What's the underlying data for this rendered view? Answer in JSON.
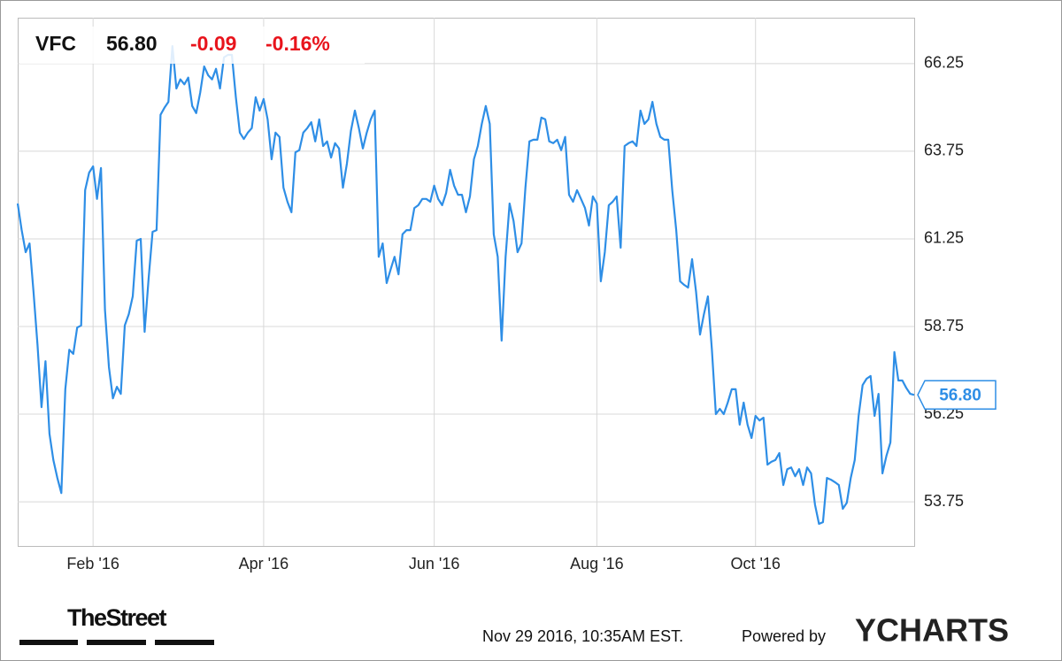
{
  "header": {
    "symbol": "VFC",
    "price": "56.80",
    "change": "-0.09",
    "change_pct": "-0.16%"
  },
  "footer": {
    "logo": "TheStreet",
    "timestamp": "Nov 29 2016, 10:35AM EST.",
    "powered_by": "Powered by",
    "brand": "YCHARTS"
  },
  "chart_data": {
    "type": "line",
    "last_label": "56.80",
    "grid": true,
    "ylim": [
      52.49,
      67.56
    ],
    "yticks": [
      53.75,
      56.25,
      58.75,
      61.25,
      63.75,
      66.25
    ],
    "xlim": [
      0,
      226
    ],
    "xticks": [
      {
        "value": 19,
        "label": "Feb '16"
      },
      {
        "value": 62,
        "label": "Apr '16"
      },
      {
        "value": 105,
        "label": "Jun '16"
      },
      {
        "value": 146,
        "label": "Aug '16"
      },
      {
        "value": 186,
        "label": "Oct '16"
      }
    ],
    "series": [
      {
        "name": "VFC",
        "color": "#2e8ee6",
        "values": [
          62.26,
          61.5,
          60.87,
          61.12,
          59.73,
          58.22,
          56.45,
          57.76,
          55.69,
          54.94,
          54.43,
          54.0,
          56.96,
          58.09,
          57.97,
          58.72,
          58.78,
          62.64,
          63.14,
          63.32,
          62.39,
          63.27,
          59.23,
          57.59,
          56.7,
          57.03,
          56.83,
          58.78,
          59.1,
          59.61,
          61.2,
          61.25,
          58.6,
          60.11,
          61.45,
          61.5,
          64.79,
          64.99,
          65.16,
          66.75,
          65.54,
          65.8,
          65.66,
          65.85,
          65.04,
          64.84,
          65.42,
          66.17,
          65.92,
          65.8,
          66.1,
          65.54,
          66.43,
          66.5,
          66.5,
          65.29,
          64.28,
          64.1,
          64.28,
          64.41,
          65.29,
          64.91,
          65.24,
          64.66,
          63.52,
          64.28,
          64.16,
          62.71,
          62.31,
          62.01,
          63.72,
          63.78,
          64.28,
          64.41,
          64.58,
          64.03,
          64.66,
          63.9,
          64.03,
          63.57,
          63.98,
          63.83,
          62.71,
          63.4,
          64.33,
          64.91,
          64.41,
          63.83,
          64.28,
          64.66,
          64.91,
          60.74,
          61.12,
          59.99,
          60.37,
          60.74,
          60.24,
          61.38,
          61.5,
          61.5,
          62.13,
          62.21,
          62.39,
          62.39,
          62.31,
          62.77,
          62.39,
          62.21,
          62.56,
          63.22,
          62.77,
          62.51,
          62.51,
          62.01,
          62.46,
          63.52,
          63.9,
          64.53,
          65.04,
          64.53,
          61.38,
          60.74,
          58.35,
          60.74,
          62.26,
          61.76,
          60.87,
          61.12,
          62.71,
          64.03,
          64.08,
          64.08,
          64.71,
          64.66,
          64.03,
          63.98,
          64.08,
          63.78,
          64.16,
          62.51,
          62.31,
          62.64,
          62.39,
          62.13,
          61.63,
          62.46,
          62.26,
          60.04,
          60.87,
          62.21,
          62.31,
          62.46,
          61.0,
          63.9,
          63.98,
          64.03,
          63.9,
          64.91,
          64.53,
          64.66,
          65.16,
          64.53,
          64.16,
          64.08,
          64.08,
          62.64,
          61.5,
          60.04,
          59.94,
          59.86,
          60.67,
          59.74,
          58.52,
          59.1,
          59.61,
          58.09,
          56.25,
          56.4,
          56.25,
          56.58,
          56.96,
          56.96,
          55.95,
          56.58,
          55.95,
          55.57,
          56.2,
          56.07,
          56.15,
          54.81,
          54.89,
          54.94,
          55.14,
          54.23,
          54.68,
          54.73,
          54.48,
          54.68,
          54.23,
          54.73,
          54.56,
          53.67,
          53.12,
          53.17,
          54.43,
          54.38,
          54.31,
          54.23,
          53.55,
          53.72,
          54.43,
          54.94,
          56.2,
          57.08,
          57.26,
          57.34,
          56.2,
          56.83,
          54.56,
          55.06,
          55.44,
          58.02,
          57.21,
          57.21,
          57.0,
          56.83,
          56.8
        ]
      }
    ]
  }
}
